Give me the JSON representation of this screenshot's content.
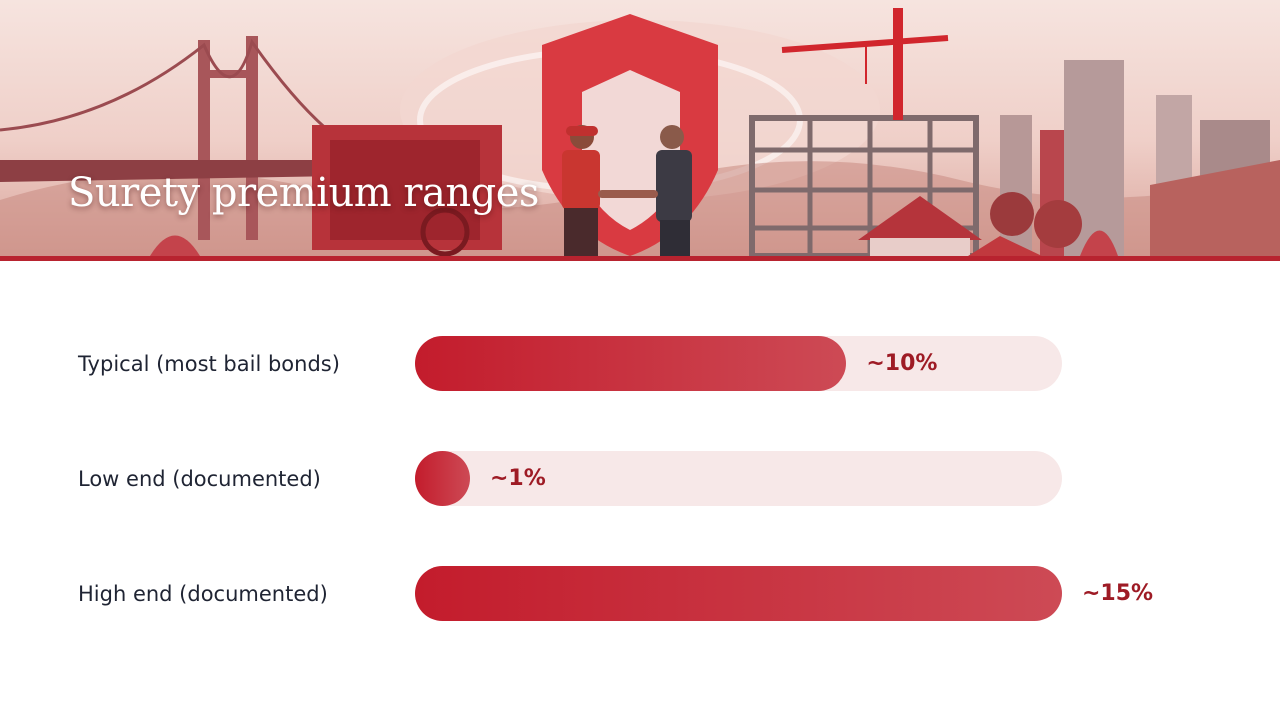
{
  "title": "Surety premium ranges",
  "colors": {
    "accent": "#c31c2c",
    "track": "#f7e8e8",
    "label": "#9e1b25",
    "text": "#1f2433"
  },
  "chart_data": {
    "type": "bar",
    "orientation": "horizontal",
    "title": "Surety premium ranges",
    "categories": [
      "Typical (most bail bonds)",
      "Low end (documented)",
      "High end (documented)"
    ],
    "values": [
      10,
      1,
      15
    ],
    "value_labels": [
      "~10%",
      "~1%",
      "~15%"
    ],
    "unit": "%",
    "xlim": [
      0,
      15
    ],
    "grid": false,
    "legend": "none"
  }
}
